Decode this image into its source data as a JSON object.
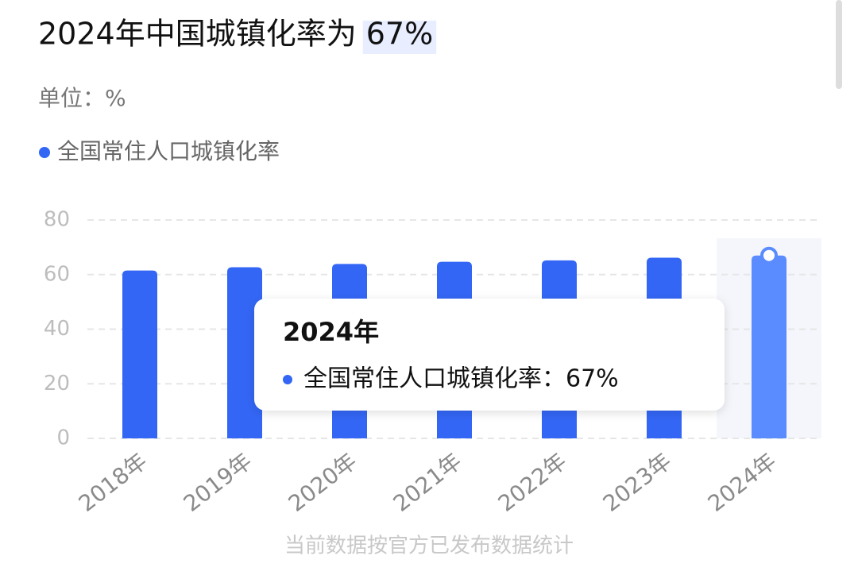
{
  "chart_data": {
    "type": "bar",
    "title": "2024年中国城镇化率为",
    "unit_label": "单位：%",
    "footnote": "当前数据按官方已发布数据统计",
    "tooltip_separator": "：",
    "categories": [
      "2018年",
      "2019年",
      "2020年",
      "2021年",
      "2022年",
      "2023年",
      "2024年"
    ],
    "series": [
      {
        "name": "全国常住人口城镇化率",
        "color": "#3366f5",
        "values": [
          61.5,
          62.7,
          63.9,
          64.7,
          65.2,
          66.2,
          67
        ],
        "value_labels": [
          null,
          null,
          null,
          null,
          null,
          null,
          "67%"
        ]
      }
    ],
    "highlight_color": "#5b8cff",
    "ylim": [
      0,
      80
    ],
    "yticks": [
      0,
      20,
      40,
      60,
      80
    ],
    "grid": true
  }
}
